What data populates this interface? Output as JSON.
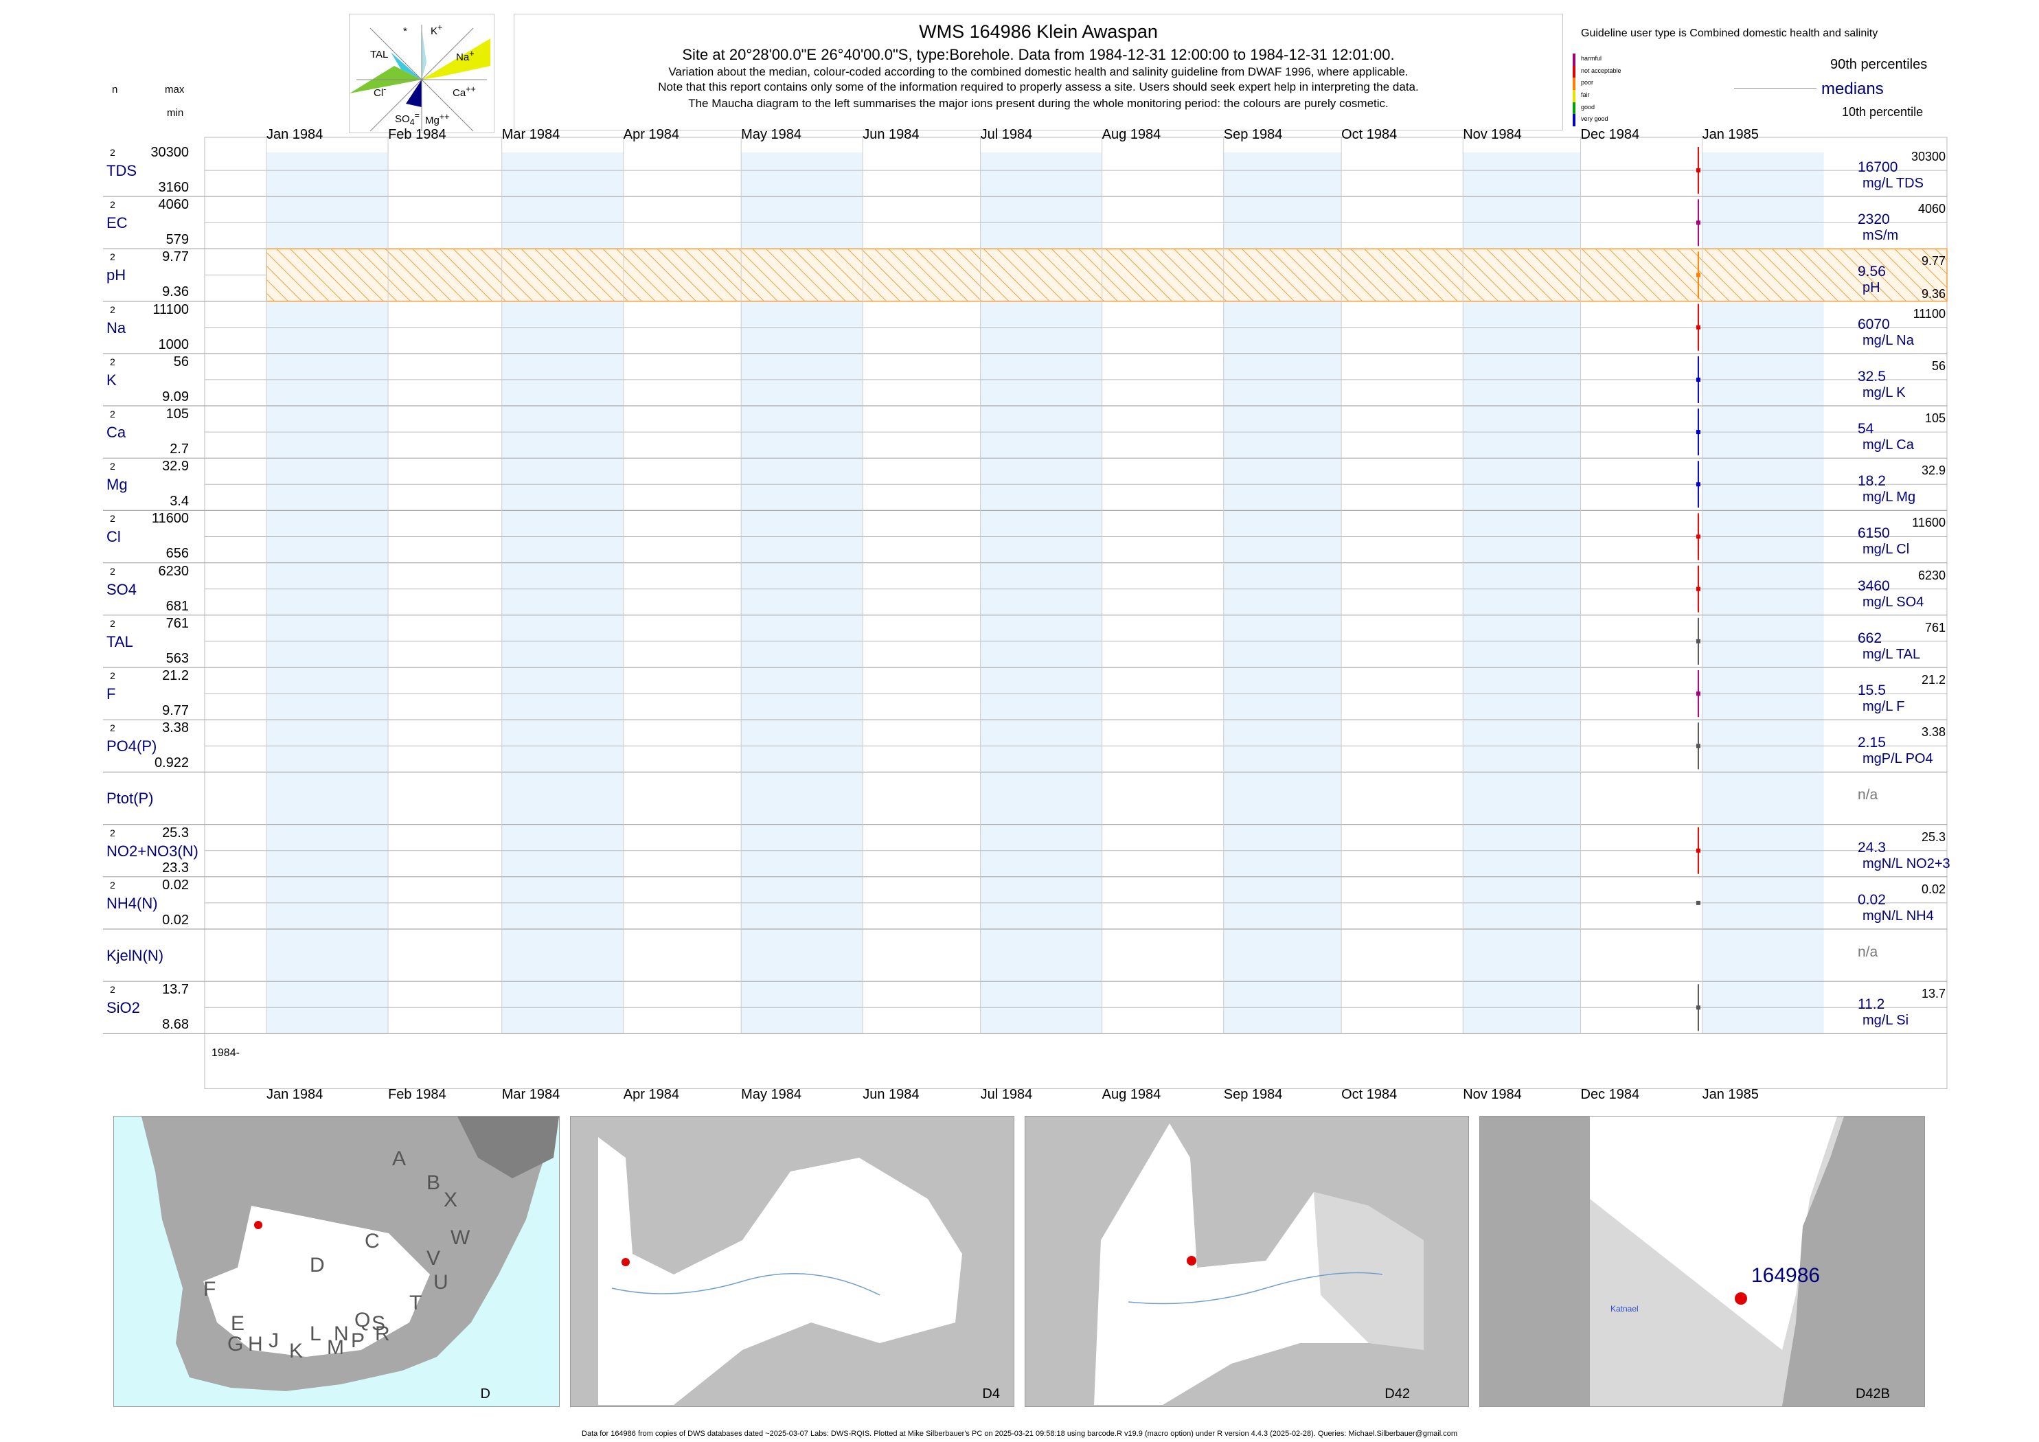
{
  "header": {
    "title": "WMS 164986  Klein Awaspan",
    "site_line": "Site at 20°28'00.0\"E 26°40'00.0\"S, type:Borehole.  Data from 1984-12-31 12:00:00 to 1984-12-31 12:01:00.",
    "note1": "Variation about the median,  colour-coded according to the combined domestic health and salinity guideline from DWAF 1996, where applicable.",
    "note2": "Note that this report contains only some of the information required to properly assess a site. Users should seek expert help in interpreting the data.",
    "note3": "The Maucha diagram to the left summarises the major ions present during the whole monitoring period: the colours are purely cosmetic."
  },
  "maucha": {
    "labels": [
      "K",
      "*",
      "TAL",
      "Na",
      "Cl",
      "Ca",
      "SO",
      "Mg"
    ],
    "colors": {
      "Na": "#e8f000",
      "Cl": "#7cc832",
      "SO4": "#000080",
      "TAL": "#40c8e0",
      "K": "#b0e0e8"
    }
  },
  "left_header": {
    "n": "n",
    "max": "max",
    "min": "min"
  },
  "guideline": {
    "title": "Guideline user type is Combined domestic health and salinity",
    "classes": [
      {
        "label": "harmful",
        "color": "#a0007a"
      },
      {
        "label": "not acceptable",
        "color": "#e00000"
      },
      {
        "label": "poor",
        "color": "#ff8000"
      },
      {
        "label": "fair",
        "color": "#e8e000"
      },
      {
        "label": "good",
        "color": "#00a000"
      },
      {
        "label": "very good",
        "color": "#0000c0"
      }
    ],
    "p90": "90th percentiles",
    "medians": "medians",
    "p10": "10th percentile"
  },
  "months": [
    "Jan 1984",
    "Feb 1984",
    "Mar 1984",
    "Apr 1984",
    "May 1984",
    "Jun 1984",
    "Jul 1984",
    "Aug 1984",
    "Sep 1984",
    "Oct 1984",
    "Nov 1984",
    "Dec 1984",
    "Jan 1985"
  ],
  "year_label": "1984-",
  "chart_data": {
    "type": "table",
    "x_range": [
      "1984-01-01",
      "1985-01-31"
    ],
    "sample_date": "1984-12-31",
    "parameters": [
      {
        "key": "tds",
        "name": "TDS",
        "n": "2",
        "max": "30300",
        "min": "3160",
        "median": "16700",
        "unit": "mg/L TDS",
        "color": "#e00000"
      },
      {
        "key": "ec",
        "name": "EC",
        "n": "2",
        "max": "4060",
        "min": "579",
        "median": "2320",
        "unit": "mS/m",
        "color": "#a0007a"
      },
      {
        "key": "ph",
        "name": "pH",
        "n": "2",
        "max": "9.77",
        "min": "9.36",
        "median": "9.56",
        "unit": "pH",
        "color": "#ff8000"
      },
      {
        "key": "na",
        "name": "Na",
        "n": "2",
        "max": "11100",
        "min": "1000",
        "median": "6070",
        "unit": "mg/L Na",
        "color": "#e00000"
      },
      {
        "key": "k",
        "name": "K",
        "n": "2",
        "max": "56",
        "min": "9.09",
        "median": "32.5",
        "unit": "mg/L K",
        "color": "#0000c0"
      },
      {
        "key": "ca",
        "name": "Ca",
        "n": "2",
        "max": "105",
        "min": "2.7",
        "median": "54",
        "unit": "mg/L Ca",
        "color": "#0000c0"
      },
      {
        "key": "mg",
        "name": "Mg",
        "n": "2",
        "max": "32.9",
        "min": "3.4",
        "median": "18.2",
        "unit": "mg/L Mg",
        "color": "#0000c0"
      },
      {
        "key": "cl",
        "name": "Cl",
        "n": "2",
        "max": "11600",
        "min": "656",
        "median": "6150",
        "unit": "mg/L Cl",
        "color": "#e00000"
      },
      {
        "key": "so4",
        "name": "SO4",
        "n": "2",
        "max": "6230",
        "min": "681",
        "median": "3460",
        "unit": "mg/L SO4",
        "color": "#e00000"
      },
      {
        "key": "tal",
        "name": "TAL",
        "n": "2",
        "max": "761",
        "min": "563",
        "median": "662",
        "unit": "mg/L TAL",
        "color": "#555555"
      },
      {
        "key": "f",
        "name": "F",
        "n": "2",
        "max": "21.2",
        "min": "9.77",
        "median": "15.5",
        "unit": "mg/L F",
        "color": "#a0007a"
      },
      {
        "key": "po4",
        "name": "PO4(P)",
        "n": "2",
        "max": "3.38",
        "min": "0.922",
        "median": "2.15",
        "unit": "mgP/L PO4",
        "color": "#555555"
      },
      {
        "key": "ptot",
        "name": "Ptot(P)",
        "n": "",
        "max": "",
        "min": "",
        "median": "n/a",
        "unit": "",
        "color": "#555555"
      },
      {
        "key": "no3",
        "name": "NO2+NO3(N)",
        "n": "2",
        "max": "25.3",
        "min": "23.3",
        "median": "24.3",
        "unit": "mgN/L NO2+3",
        "color": "#e00000"
      },
      {
        "key": "nh4",
        "name": "NH4(N)",
        "n": "2",
        "max": "0.02",
        "min": "0.02",
        "median": "0.02",
        "unit": "mgN/L NH4",
        "color": "#555555"
      },
      {
        "key": "kjel",
        "name": "KjelN(N)",
        "n": "",
        "max": "",
        "min": "",
        "median": "n/a",
        "unit": "",
        "color": "#555555"
      },
      {
        "key": "sio2",
        "name": "SiO2",
        "n": "2",
        "max": "13.7",
        "min": "8.68",
        "median": "11.2",
        "unit": "mg/L Si",
        "color": "#555555"
      }
    ]
  },
  "maps": [
    {
      "label": "D",
      "regions": [
        "A",
        "B",
        "X",
        "W",
        "C",
        "D",
        "V",
        "U",
        "F",
        "T",
        "E",
        "G",
        "H",
        "J",
        "K",
        "L",
        "M",
        "N",
        "P",
        "Q",
        "R",
        "S"
      ]
    },
    {
      "label": "D4"
    },
    {
      "label": "D42"
    },
    {
      "label": "D42B",
      "site": "164986",
      "place": "Katnael"
    }
  ],
  "footer": "Data for 164986 from copies of DWS databases dated ~2025-03-07 Labs: DWS-RQIS. Plotted at Mike Silberbauer's PC on 2025-03-21 09:58:18 using barcode.R v19.9 (macro option) under R version 4.4.3 (2025-02-28). Queries: Michael.Silberbauer@gmail.com"
}
